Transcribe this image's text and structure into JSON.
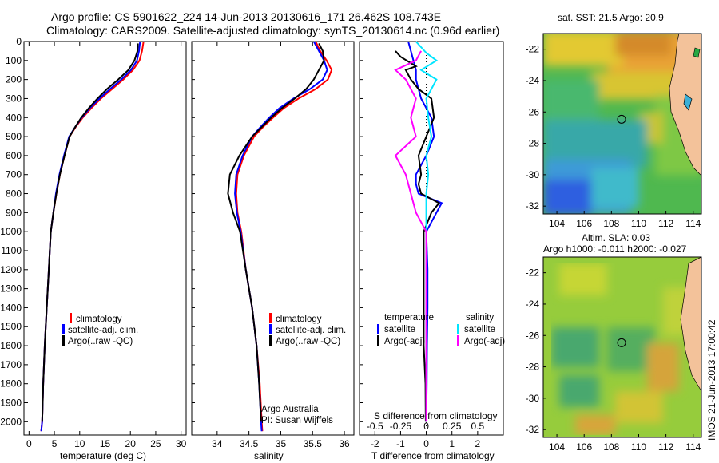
{
  "header": {
    "line1": "Argo profile: CS 5901622_224 14-Jun-2013 20130616_171 26.462S 108.743E",
    "line2": "Climatology: CARS2009. Satellite-adjusted climatology: synTS_20130614.nc (0.96d earlier)"
  },
  "colors": {
    "climatology": "#ff0000",
    "satellite": "#0000ff",
    "argo": "#000000",
    "salinity_sat": "#00e5ff",
    "salinity_argo": "#ff00ff"
  },
  "chart_data": [
    {
      "id": "temperature",
      "type": "line",
      "xlabel": "temperature (deg C)",
      "ylabel": "",
      "xlim": [
        -1,
        31
      ],
      "ylim": [
        2070,
        0
      ],
      "xticks": [
        0,
        5,
        10,
        15,
        20,
        25,
        30
      ],
      "yticks": [
        0,
        100,
        200,
        300,
        400,
        500,
        600,
        700,
        800,
        900,
        1000,
        1100,
        1200,
        1300,
        1400,
        1500,
        1600,
        1700,
        1800,
        1900,
        2000
      ],
      "legend": [
        "climatology",
        "satellite-adj. clim.",
        "Argo(..raw -QC)"
      ],
      "series": [
        {
          "name": "climatology",
          "color": "#ff0000",
          "x": [
            22.6,
            22.3,
            21.8,
            20.5,
            18.6,
            16.4,
            14.2,
            12.3,
            10.6,
            9.2,
            8.0,
            7.0,
            6.1,
            5.4,
            4.8,
            4.3,
            3.9,
            3.5,
            3.1,
            2.8,
            2.6,
            2.4
          ],
          "y": [
            0,
            50,
            100,
            150,
            200,
            250,
            300,
            350,
            400,
            450,
            500,
            600,
            700,
            800,
            900,
            1000,
            1200,
            1400,
            1600,
            1800,
            2000,
            2050
          ]
        },
        {
          "name": "satellite-adj. clim.",
          "color": "#0000ff",
          "x": [
            21.9,
            21.7,
            21.3,
            20.1,
            18.2,
            16.0,
            13.9,
            12.0,
            10.4,
            9.1,
            7.9,
            6.9,
            6.0,
            5.3,
            4.8,
            4.3,
            3.9,
            3.5,
            3.1,
            2.8,
            2.6,
            2.4
          ],
          "y": [
            0,
            50,
            100,
            150,
            200,
            250,
            300,
            350,
            400,
            450,
            500,
            600,
            700,
            800,
            900,
            1000,
            1200,
            1400,
            1600,
            1800,
            2000,
            2050
          ]
        },
        {
          "name": "Argo(..raw -QC)",
          "color": "#000000",
          "x": [
            21.5,
            21.4,
            20.8,
            19.6,
            17.6,
            15.4,
            13.5,
            11.8,
            10.3,
            9.1,
            8.0,
            7.0,
            6.1,
            5.4,
            4.8,
            4.3,
            3.9,
            3.5,
            3.1,
            2.8,
            2.6
          ],
          "y": [
            10,
            50,
            100,
            150,
            200,
            250,
            300,
            350,
            400,
            450,
            500,
            600,
            700,
            800,
            900,
            1000,
            1200,
            1400,
            1600,
            1800,
            2000
          ]
        }
      ]
    },
    {
      "id": "salinity",
      "type": "line",
      "xlabel": "salinity",
      "ylabel": "",
      "xlim": [
        33.6,
        36.15
      ],
      "ylim": [
        2070,
        0
      ],
      "xticks": [
        34,
        34.5,
        35,
        35.5,
        36
      ],
      "legend": [
        "climatology",
        "satellite-adj. clim.",
        "Argo(..raw -QC)"
      ],
      "annotation": [
        "Argo Australia",
        "PI: Susan Wijffels"
      ],
      "series": [
        {
          "name": "climatology",
          "color": "#ff0000",
          "x": [
            35.55,
            35.62,
            35.72,
            35.8,
            35.74,
            35.55,
            35.28,
            35.05,
            34.88,
            34.72,
            34.58,
            34.42,
            34.32,
            34.3,
            34.32,
            34.38,
            34.45,
            34.55,
            34.62,
            34.67,
            34.7,
            34.71
          ],
          "y": [
            0,
            50,
            100,
            150,
            200,
            250,
            300,
            350,
            400,
            450,
            500,
            600,
            700,
            800,
            900,
            1000,
            1200,
            1400,
            1600,
            1800,
            2000,
            2050
          ]
        },
        {
          "name": "satellite-adj. clim.",
          "color": "#0000ff",
          "x": [
            35.52,
            35.6,
            35.68,
            35.73,
            35.66,
            35.46,
            35.2,
            34.98,
            34.82,
            34.68,
            34.55,
            34.4,
            34.3,
            34.28,
            34.31,
            34.37,
            34.45,
            34.55,
            34.62,
            34.66,
            34.69,
            34.7
          ],
          "y": [
            0,
            50,
            100,
            150,
            200,
            250,
            300,
            350,
            400,
            450,
            500,
            600,
            700,
            800,
            900,
            1000,
            1200,
            1400,
            1600,
            1800,
            2000,
            2050
          ]
        },
        {
          "name": "Argo(..raw -QC)",
          "color": "#000000",
          "x": [
            35.6,
            35.66,
            35.68,
            35.6,
            35.52,
            35.4,
            35.22,
            35.02,
            34.85,
            34.7,
            34.55,
            34.35,
            34.2,
            34.17,
            34.25,
            34.36,
            34.45,
            34.55,
            34.62,
            34.66,
            34.69
          ],
          "y": [
            10,
            50,
            100,
            150,
            200,
            250,
            300,
            350,
            400,
            450,
            500,
            600,
            700,
            800,
            900,
            1000,
            1200,
            1400,
            1600,
            1800,
            2000
          ]
        }
      ]
    },
    {
      "id": "differences",
      "type": "line",
      "xlabel": "T difference from climatology",
      "xlabel_top": "S difference from climatology",
      "ylim": [
        2070,
        0
      ],
      "t_xlim": [
        -2.6,
        3.0
      ],
      "t_xticks": [
        -2,
        -1,
        0,
        1,
        2
      ],
      "s_xticks": [
        -0.5,
        -0.25,
        0,
        0.25,
        0.5
      ],
      "legend": {
        "temperature": "temperature",
        "salinity": "salinity",
        "t_sat": "satellite",
        "t_argo": "Argo(-adj)",
        "s_sat": "satellite",
        "s_argo": "Argo(-adj)"
      },
      "series": [
        {
          "name": "temperature satellite",
          "color": "#0000ff",
          "x": [
            -0.7,
            -0.6,
            -0.5,
            -0.4,
            -0.4,
            -0.3,
            -0.2,
            0.2,
            0.3,
            0.0,
            -0.4,
            -0.4,
            -0.3,
            0.6,
            0.4,
            0.0,
            0.05,
            0.05,
            0.03,
            0.02,
            0.0
          ],
          "y": [
            0,
            50,
            100,
            150,
            200,
            250,
            300,
            400,
            500,
            600,
            700,
            750,
            800,
            850,
            900,
            1000,
            1200,
            1400,
            1600,
            1800,
            2000
          ]
        },
        {
          "name": "temperature Argo(-adj)",
          "color": "#000000",
          "x": [
            -1.2,
            -1.0,
            -0.4,
            -0.8,
            -0.6,
            -0.3,
            0.2,
            0.3,
            0.0,
            -0.3,
            -0.2,
            -0.3,
            -0.2,
            0.5,
            0.2,
            -0.1,
            -0.1,
            -0.1,
            -0.1,
            -0.03,
            -0.02
          ],
          "y": [
            50,
            80,
            130,
            150,
            200,
            250,
            300,
            400,
            500,
            600,
            700,
            750,
            800,
            850,
            900,
            1000,
            1200,
            1400,
            1600,
            1800,
            2000
          ]
        },
        {
          "name": "salinity satellite",
          "color": "#00e5ff",
          "x": [
            -0.1,
            0.0,
            0.1,
            -0.05,
            0.1,
            0.0,
            0.02,
            0.05,
            0.0,
            0.02,
            0.0,
            0.0,
            0.0,
            0.0,
            0.0,
            0.0,
            0.0
          ],
          "y": [
            0,
            60,
            100,
            150,
            200,
            300,
            400,
            500,
            600,
            700,
            800,
            900,
            1000,
            1200,
            1400,
            1600,
            2000
          ]
        },
        {
          "name": "salinity Argo(-adj)",
          "color": "#ff00ff",
          "x": [
            -0.05,
            -0.1,
            -0.3,
            -0.2,
            -0.1,
            -0.15,
            -0.1,
            -0.3,
            -0.2,
            -0.15,
            -0.1,
            0.0,
            0.0,
            0.0,
            0.0
          ],
          "y": [
            50,
            100,
            150,
            200,
            300,
            400,
            500,
            600,
            700,
            800,
            900,
            1000,
            1200,
            1600,
            2000
          ]
        }
      ]
    },
    {
      "id": "sst_map",
      "type": "heatmap",
      "title": "sat. SST: 21.5 Argo: 20.9",
      "xlim": [
        103,
        114.6
      ],
      "ylim": [
        -32.5,
        -21
      ],
      "xticks": [
        104,
        106,
        108,
        110,
        112,
        114
      ],
      "yticks": [
        -22,
        -24,
        -26,
        -28,
        -30,
        -32
      ],
      "marker": {
        "lon": 108.743,
        "lat": -26.462
      }
    },
    {
      "id": "sla_map",
      "type": "heatmap",
      "title": "Altim. SLA: 0.03",
      "subtitle": "Argo h1000: -0.011 h2000: -0.027",
      "xlim": [
        103,
        114.6
      ],
      "ylim": [
        -32.5,
        -21
      ],
      "xticks": [
        104,
        106,
        108,
        110,
        112,
        114
      ],
      "yticks": [
        -22,
        -24,
        -26,
        -28,
        -30,
        -32
      ],
      "marker": {
        "lon": 108.743,
        "lat": -26.462
      }
    }
  ],
  "side_label": "IMOS 21-Jun-2013 17:00:42"
}
